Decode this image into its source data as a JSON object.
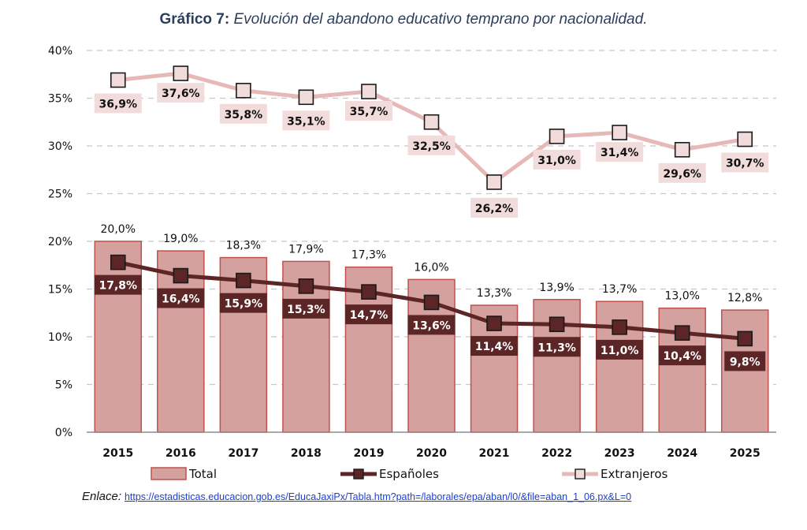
{
  "header": {
    "title_lead": "Gráfico 7:",
    "title_rest": "Evolución del abandono educativo temprano por nacionalidad."
  },
  "chart_data": {
    "type": "bar",
    "title": "Gráfico 7: Evolución del abandono educativo temprano por nacionalidad.",
    "categories": [
      "2015",
      "2016",
      "2017",
      "2018",
      "2019",
      "2020",
      "2021",
      "2022",
      "2023",
      "2024",
      "2025"
    ],
    "ylim": [
      0,
      40
    ],
    "yticks": [
      0,
      5,
      10,
      15,
      20,
      25,
      30,
      35,
      40
    ],
    "ytick_labels": [
      "0%",
      "5%",
      "10%",
      "15%",
      "20%",
      "25%",
      "30%",
      "35%",
      "40%"
    ],
    "grid": true,
    "legend_position": "bottom",
    "series": [
      {
        "name": "Total",
        "kind": "bar",
        "color": "#d4a19f",
        "edge_color": "#c0504d",
        "values": [
          20.0,
          19.0,
          18.3,
          17.9,
          17.3,
          16.0,
          13.3,
          13.9,
          13.7,
          13.0,
          12.8
        ],
        "labels": [
          "20,0%",
          "19,0%",
          "18,3%",
          "17,9%",
          "17,3%",
          "16,0%",
          "13,3%",
          "13,9%",
          "13,7%",
          "13,0%",
          "12,8%"
        ]
      },
      {
        "name": "Españoles",
        "kind": "line",
        "color": "#5c2526",
        "values": [
          17.8,
          16.4,
          15.9,
          15.3,
          14.7,
          13.6,
          11.4,
          11.3,
          11.0,
          10.4,
          9.8
        ],
        "labels": [
          "17,8%",
          "16,4%",
          "15,9%",
          "15,3%",
          "14,7%",
          "13,6%",
          "11,4%",
          "11,3%",
          "11,0%",
          "10,4%",
          "9,8%"
        ]
      },
      {
        "name": "Extranjeros",
        "kind": "line",
        "color": "#e6b9b8",
        "marker_fill": "#f2dcdb",
        "values": [
          36.9,
          37.6,
          35.8,
          35.1,
          35.7,
          32.5,
          26.2,
          31.0,
          31.4,
          29.6,
          30.7
        ],
        "labels": [
          "36,9%",
          "37,6%",
          "35,8%",
          "35,1%",
          "35,7%",
          "32,5%",
          "26,2%",
          "31,0%",
          "31,4%",
          "29,6%",
          "30,7%"
        ]
      }
    ]
  },
  "footer": {
    "source_label": "Enlace:",
    "source_url": "https://estadisticas.educacion.gob.es/EducaJaxiPx/Tabla.htm?path=/laborales/epa/aban/l0/&file=aban_1_06.px&L=0"
  }
}
